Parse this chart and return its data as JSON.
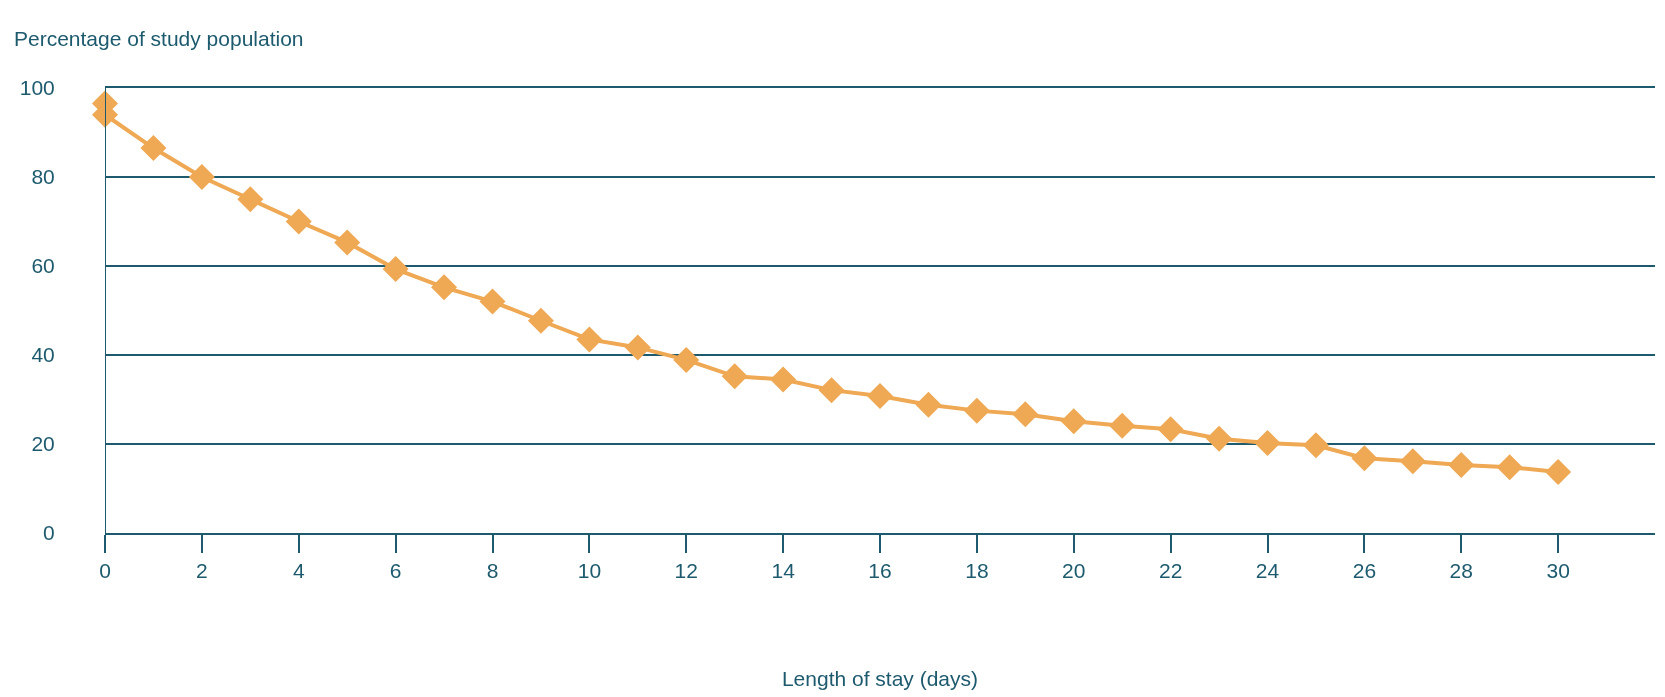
{
  "chart_data": {
    "type": "line",
    "ylabel": "Percentage of study population",
    "xlabel": "Length of stay (days)",
    "x": [
      0,
      0,
      1,
      2,
      3,
      4,
      5,
      6,
      7,
      8,
      9,
      10,
      11,
      12,
      13,
      14,
      15,
      16,
      17,
      18,
      19,
      20,
      21,
      22,
      23,
      24,
      25,
      26,
      27,
      28,
      29,
      30
    ],
    "series": [
      {
        "color": "#efa853",
        "values": [
          96.5,
          94,
          86.5,
          80,
          75,
          70,
          65.3,
          59.3,
          55.2,
          52,
          47.7,
          43.5,
          41.7,
          38.9,
          35.2,
          34.5,
          32.1,
          30.8,
          28.8,
          27.5,
          26.7,
          25.1,
          24.1,
          23.3,
          21.2,
          20.2,
          19.7,
          16.8,
          16.1,
          15.3,
          14.8,
          13.7
        ]
      }
    ],
    "xlim": [
      0,
      32
    ],
    "xticks": [
      0,
      2,
      4,
      6,
      8,
      10,
      12,
      14,
      16,
      18,
      20,
      22,
      24,
      26,
      28,
      30
    ],
    "ylim": [
      0,
      100
    ],
    "yticks": [
      0,
      20,
      40,
      60,
      80,
      100
    ],
    "grid": "y",
    "marker": "diamond",
    "line_style": "solid"
  }
}
